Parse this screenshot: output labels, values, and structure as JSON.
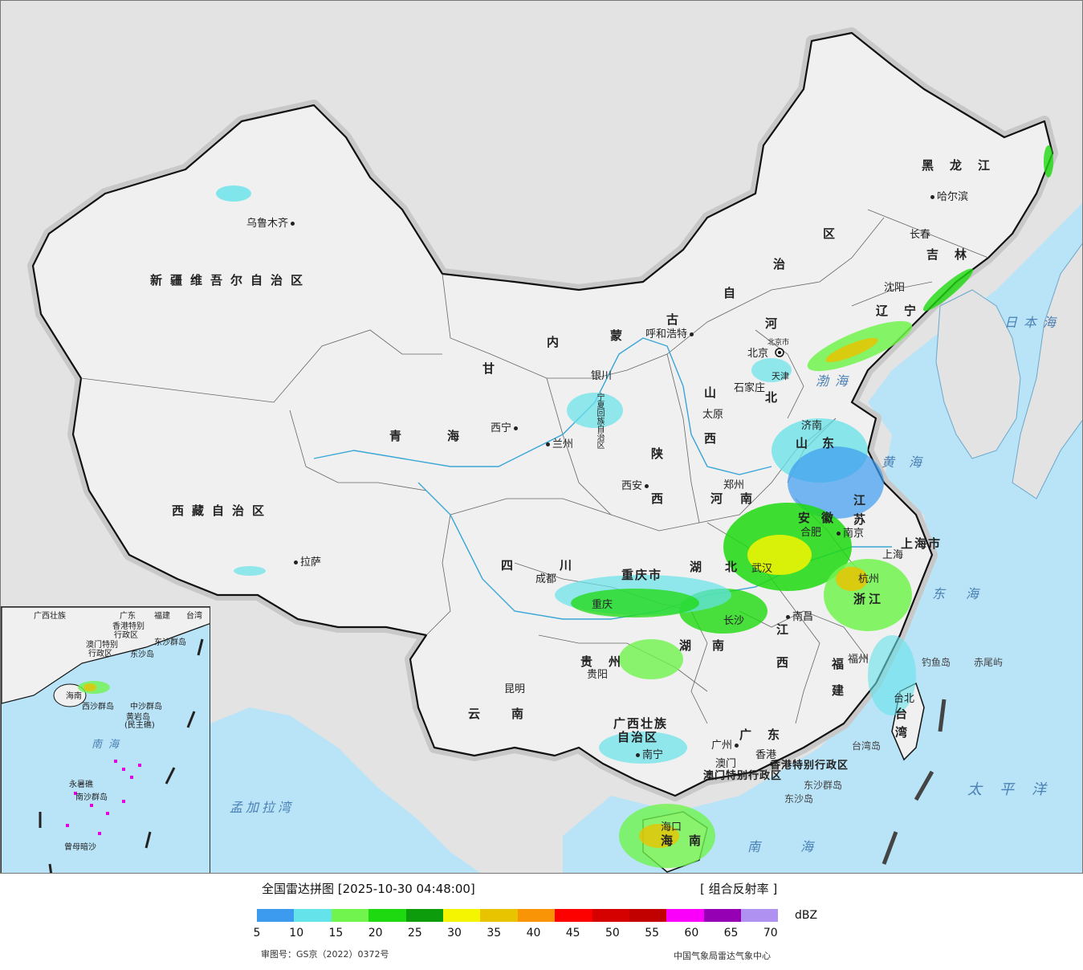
{
  "provinces": [
    {
      "id": "xinjiang",
      "label": "新疆维吾尔自治区"
    },
    {
      "id": "xizang",
      "label": "西藏自治区"
    },
    {
      "id": "qinghai-1",
      "label": "青"
    },
    {
      "id": "qinghai-2",
      "label": "海"
    },
    {
      "id": "gansu",
      "label": "甘"
    },
    {
      "id": "sichuan-1",
      "label": "四"
    },
    {
      "id": "sichuan-2",
      "label": "川"
    },
    {
      "id": "yunnan-1",
      "label": "云"
    },
    {
      "id": "yunnan-2",
      "label": "南"
    },
    {
      "id": "neimenggu-1",
      "label": "内"
    },
    {
      "id": "neimenggu-2",
      "label": "蒙"
    },
    {
      "id": "neimenggu-3",
      "label": "古"
    },
    {
      "id": "neimenggu-4",
      "label": "自"
    },
    {
      "id": "neimenggu-5",
      "label": "治"
    },
    {
      "id": "neimenggu-6",
      "label": "区"
    },
    {
      "id": "heilongjiang",
      "label": "黑龙江"
    },
    {
      "id": "jilin",
      "label": "吉林"
    },
    {
      "id": "liaoning",
      "label": "辽宁"
    },
    {
      "id": "hebei-1",
      "label": "河"
    },
    {
      "id": "hebei-2",
      "label": "北"
    },
    {
      "id": "shanxi-1",
      "label": "山"
    },
    {
      "id": "shanxi-2",
      "label": "西"
    },
    {
      "id": "shaanxi-1",
      "label": "陕"
    },
    {
      "id": "shaanxi-2",
      "label": "西"
    },
    {
      "id": "henan",
      "label": "河南"
    },
    {
      "id": "hubei-1",
      "label": "湖"
    },
    {
      "id": "hubei-2",
      "label": "北"
    },
    {
      "id": "hunan-1",
      "label": "湖"
    },
    {
      "id": "hunan-2",
      "label": "南"
    },
    {
      "id": "jiangxi-1",
      "label": "江"
    },
    {
      "id": "jiangxi-2",
      "label": "西"
    },
    {
      "id": "fujian-1",
      "label": "福"
    },
    {
      "id": "fujian-2",
      "label": "建"
    },
    {
      "id": "guizhou",
      "label": "贵州"
    },
    {
      "id": "chongqing",
      "label": "重庆市"
    },
    {
      "id": "guangxi-1",
      "label": "广西壮族"
    },
    {
      "id": "guangxi-2",
      "label": "自治区"
    },
    {
      "id": "guangdong",
      "label": "广东"
    },
    {
      "id": "shandong",
      "label": "山东"
    },
    {
      "id": "jiangsu-1",
      "label": "江"
    },
    {
      "id": "jiangsu-2",
      "label": "苏"
    },
    {
      "id": "anhui",
      "label": "安徽"
    },
    {
      "id": "zhejiang",
      "label": "浙江"
    },
    {
      "id": "shanghai",
      "label": "上海市"
    },
    {
      "id": "taiwan-1",
      "label": "台"
    },
    {
      "id": "taiwan-2",
      "label": "湾"
    },
    {
      "id": "hainan",
      "label": "海南"
    },
    {
      "id": "ningxia",
      "label": "宁夏回族自治区"
    },
    {
      "id": "hongkong",
      "label": "香港特别行政区"
    },
    {
      "id": "macau",
      "label": "澳门特别行政区"
    },
    {
      "id": "tianjin",
      "label": "天津"
    },
    {
      "id": "beijing",
      "label": "北京市"
    }
  ],
  "cities": [
    {
      "id": "urumqi",
      "label": "乌鲁木齐"
    },
    {
      "id": "lhasa",
      "label": "拉萨"
    },
    {
      "id": "xining",
      "label": "西宁"
    },
    {
      "id": "lanzhou",
      "label": "兰州"
    },
    {
      "id": "yinchuan",
      "label": "银川"
    },
    {
      "id": "hohhot",
      "label": "呼和浩特"
    },
    {
      "id": "harbin",
      "label": "哈尔滨"
    },
    {
      "id": "changchun",
      "label": "长春"
    },
    {
      "id": "shenyang",
      "label": "沈阳"
    },
    {
      "id": "beijing-city",
      "label": "北京"
    },
    {
      "id": "shijiazhuang",
      "label": "石家庄"
    },
    {
      "id": "taiyuan",
      "label": "太原"
    },
    {
      "id": "jinan",
      "label": "济南"
    },
    {
      "id": "zhengzhou",
      "label": "郑州"
    },
    {
      "id": "xian",
      "label": "西安"
    },
    {
      "id": "chengdu",
      "label": "成都"
    },
    {
      "id": "chongqing-city",
      "label": "重庆"
    },
    {
      "id": "guiyang",
      "label": "贵阳"
    },
    {
      "id": "kunming",
      "label": "昆明"
    },
    {
      "id": "nanning",
      "label": "南宁"
    },
    {
      "id": "guangzhou",
      "label": "广州"
    },
    {
      "id": "hongkong-city",
      "label": "香港"
    },
    {
      "id": "macau-city",
      "label": "澳门"
    },
    {
      "id": "nanchang",
      "label": "南昌"
    },
    {
      "id": "fuzhou",
      "label": "福州"
    },
    {
      "id": "taibei",
      "label": "台北"
    },
    {
      "id": "hangzhou",
      "label": "杭州"
    },
    {
      "id": "shanghai-city",
      "label": "上海"
    },
    {
      "id": "nanjing",
      "label": "南京"
    },
    {
      "id": "hefei",
      "label": "合肥"
    },
    {
      "id": "wuhan",
      "label": "武汉"
    },
    {
      "id": "changsha",
      "label": "长沙"
    },
    {
      "id": "haikou",
      "label": "海口"
    }
  ],
  "seas": [
    {
      "id": "bohai",
      "label": "渤海"
    },
    {
      "id": "huanghai",
      "label": "黄海"
    },
    {
      "id": "donghai",
      "label": "东海"
    },
    {
      "id": "nanhai",
      "label": "南海"
    },
    {
      "id": "taipingyang",
      "label": "太平洋"
    },
    {
      "id": "ribenhai",
      "label": "日本海"
    },
    {
      "id": "mengjialawan",
      "label": "孟加拉湾"
    }
  ],
  "islands": [
    {
      "id": "diaoyudao",
      "label": "钓鱼岛"
    },
    {
      "id": "chiweiyu",
      "label": "赤尾屿"
    },
    {
      "id": "dongshaqundao",
      "label": "东沙群岛"
    },
    {
      "id": "dongshadao",
      "label": "东沙岛"
    },
    {
      "id": "taiwandao",
      "label": "台湾岛"
    }
  ],
  "inset": {
    "labels": [
      {
        "id": "guangxi",
        "label": "广西壮族"
      },
      {
        "id": "guangdong",
        "label": "广东"
      },
      {
        "id": "fujian",
        "label": "福建"
      },
      {
        "id": "taiwan",
        "label": "台湾"
      },
      {
        "id": "hk",
        "label": "香港特别"
      },
      {
        "id": "hk2",
        "label": "行政区"
      },
      {
        "id": "macau",
        "label": "澳门特别"
      },
      {
        "id": "macau2",
        "label": "行政区"
      },
      {
        "id": "dongsha",
        "label": "东沙群岛"
      },
      {
        "id": "dongshadao",
        "label": "东沙岛"
      },
      {
        "id": "hainan",
        "label": "海南"
      },
      {
        "id": "xisha",
        "label": "西沙群岛"
      },
      {
        "id": "zhongsha",
        "label": "中沙群岛"
      },
      {
        "id": "huangyandao",
        "label": "黄岩岛"
      },
      {
        "id": "huangyandao2",
        "label": "(民主礁)"
      },
      {
        "id": "nanhai",
        "label": "南海"
      },
      {
        "id": "yongshujiao",
        "label": "永暑礁"
      },
      {
        "id": "nansha",
        "label": "南沙群岛"
      },
      {
        "id": "zengmuansha",
        "label": "曾母暗沙"
      }
    ]
  },
  "legend": {
    "title": "全国雷达拼图 [2025-10-30 04:48:00]",
    "product": "[ 组合反射率 ]",
    "unit": "dBZ",
    "ticks": [
      "5",
      "10",
      "15",
      "20",
      "25",
      "30",
      "35",
      "40",
      "45",
      "50",
      "55",
      "60",
      "65",
      "70"
    ],
    "colors": [
      "#3d9bef",
      "#65e3ea",
      "#71f44e",
      "#1ed90f",
      "#0c9c0c",
      "#f5f502",
      "#e8c300",
      "#f99406",
      "#fd0000",
      "#d50000",
      "#c10000",
      "#fa00fa",
      "#9600b4",
      "#ae91f0"
    ],
    "approval": "审图号：GS京（2022）0372号",
    "agency": "中国气象局雷达气象中心"
  }
}
